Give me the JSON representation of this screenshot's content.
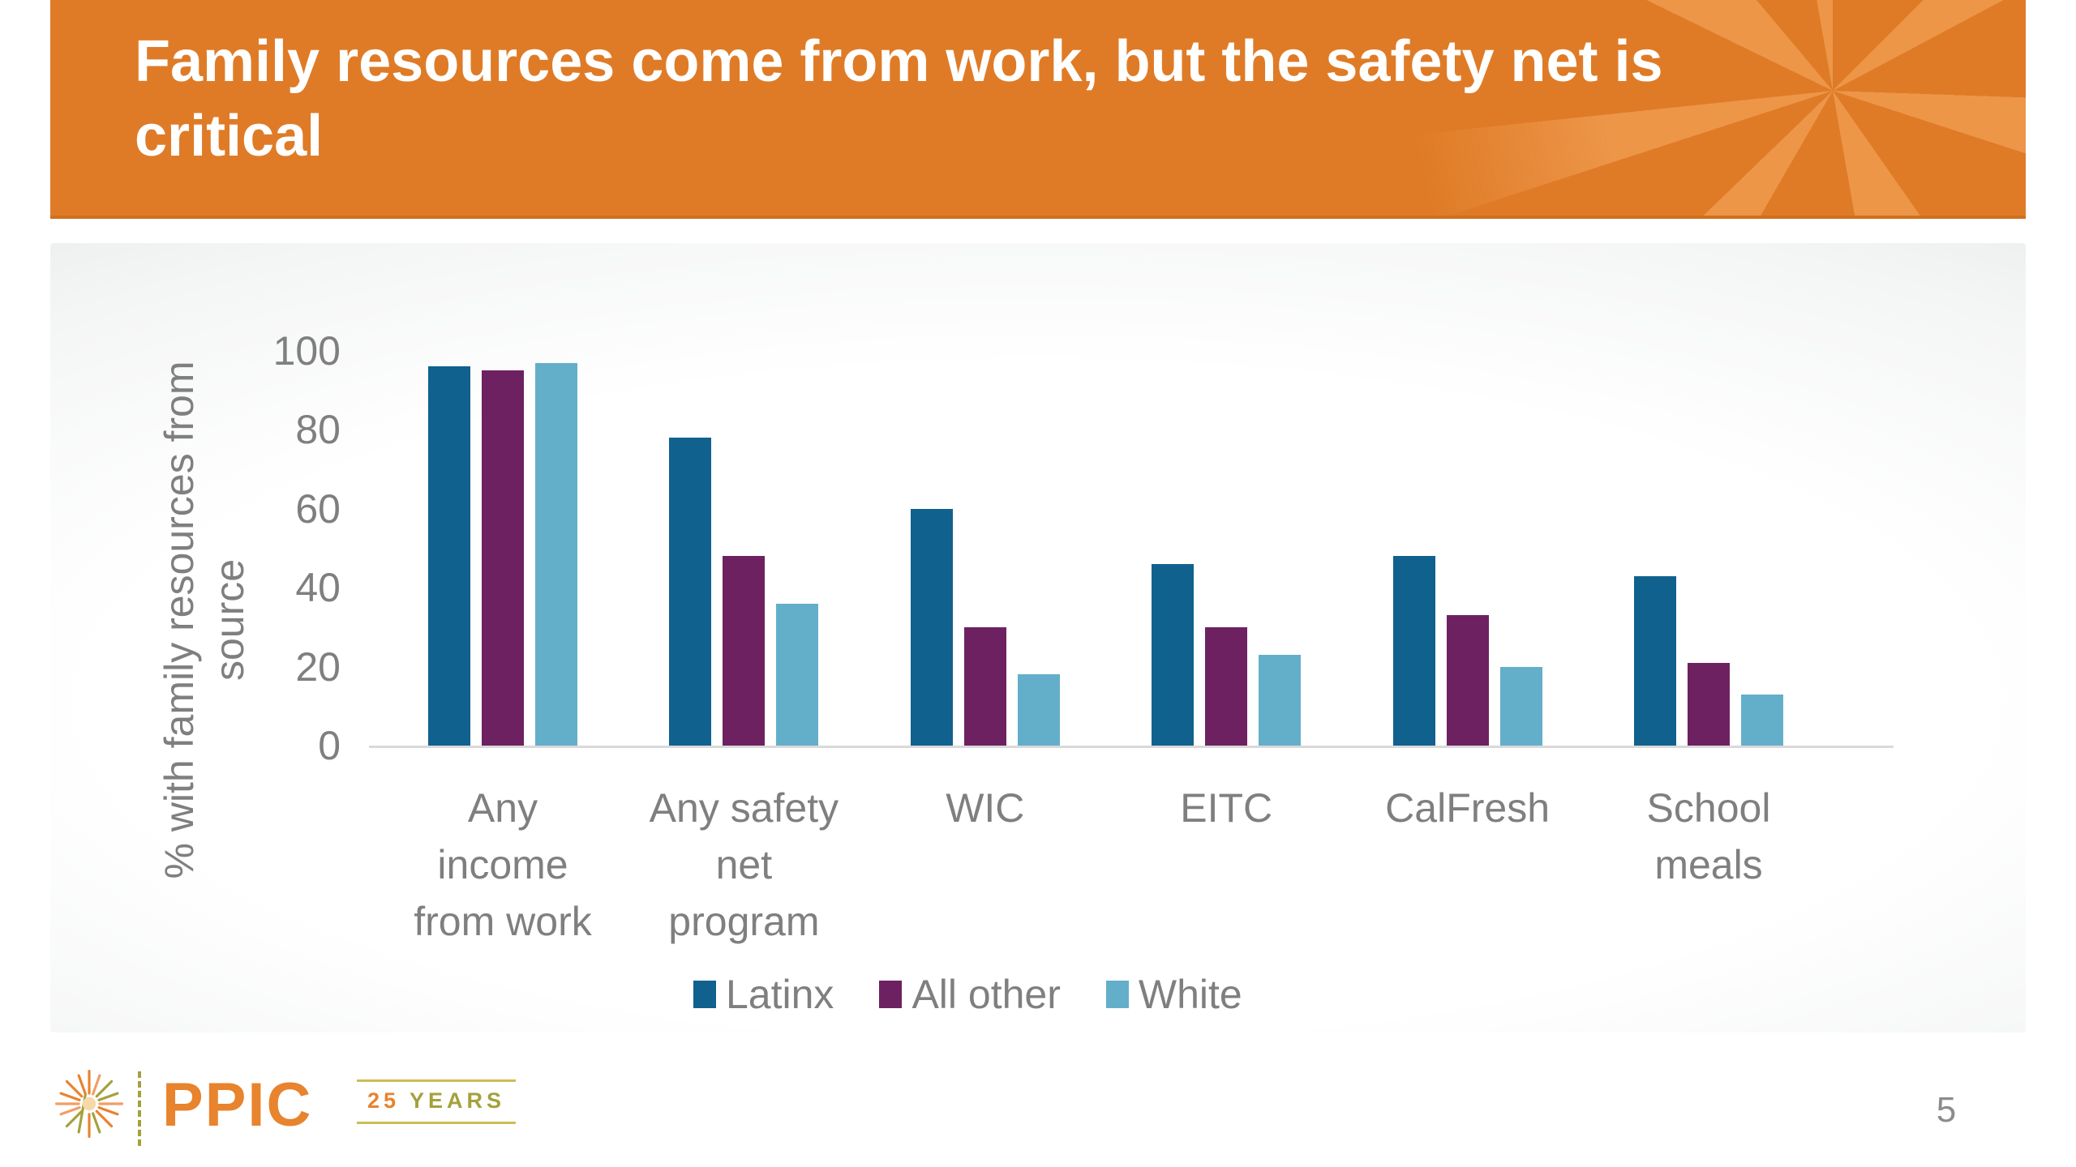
{
  "slide": {
    "title": [
      "Family resources come from work, but the safety net is",
      "critical"
    ],
    "page_number": "5"
  },
  "footer": {
    "logo_text": "PPIC",
    "anniversary": {
      "number": "25",
      "label": "YEARS"
    }
  },
  "colors": {
    "banner_orange": "#df7b27",
    "banner_ray_orange": "#ee994d",
    "latinx_blue": "#10618e",
    "all_other_purple": "#6e2161",
    "white_light_blue": "#63afca",
    "label_gray": "#7f7f7f",
    "axis_line_gray": "#d9d9d9",
    "logo_orange": "#e8832e",
    "logo_olive": "#a4a13c"
  },
  "chart_data": {
    "type": "bar",
    "title": "",
    "xlabel": "",
    "ylabel": "% with family resources from source",
    "ylabel_lines": [
      "% with family resources from",
      "source"
    ],
    "ylim": [
      0,
      100
    ],
    "yticks": [
      0,
      20,
      40,
      60,
      80,
      100
    ],
    "grid": false,
    "legend_position": "bottom",
    "categories": [
      "Any income from work",
      "Any safety net program",
      "WIC",
      "EITC",
      "CalFresh",
      "School meals"
    ],
    "category_label_lines": [
      [
        "Any",
        "income",
        "from work"
      ],
      [
        "Any safety",
        "net",
        "program"
      ],
      [
        "WIC"
      ],
      [
        "EITC"
      ],
      [
        "CalFresh"
      ],
      [
        "School",
        "meals"
      ]
    ],
    "series": [
      {
        "name": "Latinx",
        "color": "#10618e",
        "values": [
          96,
          78,
          60,
          46,
          48,
          43
        ]
      },
      {
        "name": "All other",
        "color": "#6e2161",
        "values": [
          95,
          48,
          30,
          30,
          33,
          21
        ]
      },
      {
        "name": "White",
        "color": "#63afca",
        "values": [
          97,
          36,
          18,
          23,
          20,
          13
        ]
      }
    ]
  }
}
